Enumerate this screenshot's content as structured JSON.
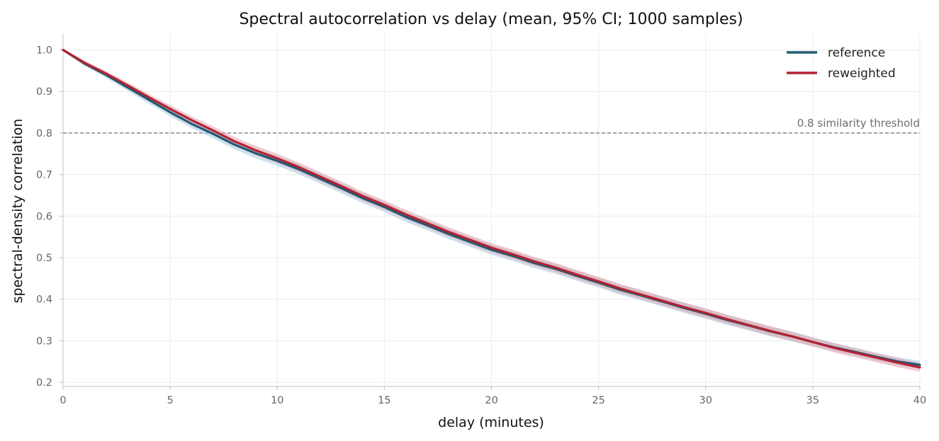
{
  "chart_data": {
    "type": "line",
    "title": "Spectral autocorrelation vs delay (mean, 95% CI; 1000 samples)",
    "xlabel": "delay (minutes)",
    "ylabel": "spectral-density correlation",
    "xlim": [
      0,
      40
    ],
    "ylim": [
      0.19,
      1.04
    ],
    "xticks": [
      0,
      5,
      10,
      15,
      20,
      25,
      30,
      35,
      40
    ],
    "yticks": [
      0.2,
      0.3,
      0.4,
      0.5,
      0.6,
      0.7,
      0.8,
      0.9,
      1.0
    ],
    "ytick_labels": [
      "0.2",
      "0.3",
      "0.4",
      "0.5",
      "0.6",
      "0.7",
      "0.8",
      "0.9",
      "1.0"
    ],
    "grid": true,
    "legend_position": "top-right",
    "threshold": {
      "value": 0.8,
      "label": "0.8 similarity threshold",
      "color": "#888888"
    },
    "x": [
      0,
      1,
      2,
      3,
      4,
      5,
      6,
      7,
      8,
      9,
      10,
      11,
      12,
      13,
      14,
      15,
      16,
      17,
      18,
      19,
      20,
      21,
      22,
      23,
      24,
      25,
      26,
      27,
      28,
      29,
      30,
      31,
      32,
      33,
      34,
      35,
      36,
      37,
      38,
      39,
      40
    ],
    "series": [
      {
        "name": "reference",
        "color": "#1f5b72",
        "band_color": "#a9c6dc",
        "values": [
          1.0,
          0.967,
          0.94,
          0.91,
          0.88,
          0.85,
          0.822,
          0.798,
          0.772,
          0.751,
          0.733,
          0.713,
          0.69,
          0.667,
          0.643,
          0.622,
          0.598,
          0.578,
          0.557,
          0.538,
          0.519,
          0.504,
          0.487,
          0.473,
          0.456,
          0.44,
          0.423,
          0.409,
          0.394,
          0.379,
          0.365,
          0.35,
          0.337,
          0.323,
          0.311,
          0.297,
          0.284,
          0.273,
          0.261,
          0.25,
          0.242
        ],
        "ci_lower": [
          1.0,
          0.962,
          0.933,
          0.902,
          0.871,
          0.84,
          0.812,
          0.787,
          0.761,
          0.739,
          0.721,
          0.701,
          0.678,
          0.655,
          0.631,
          0.61,
          0.586,
          0.566,
          0.545,
          0.526,
          0.507,
          0.492,
          0.475,
          0.461,
          0.444,
          0.428,
          0.411,
          0.397,
          0.382,
          0.367,
          0.353,
          0.338,
          0.325,
          0.311,
          0.299,
          0.287,
          0.275,
          0.264,
          0.252,
          0.241,
          0.233
        ],
        "ci_upper": [
          1.0,
          0.972,
          0.947,
          0.918,
          0.889,
          0.86,
          0.832,
          0.809,
          0.783,
          0.763,
          0.745,
          0.725,
          0.702,
          0.679,
          0.655,
          0.634,
          0.61,
          0.59,
          0.569,
          0.55,
          0.531,
          0.516,
          0.499,
          0.485,
          0.468,
          0.452,
          0.435,
          0.421,
          0.406,
          0.391,
          0.377,
          0.362,
          0.349,
          0.335,
          0.323,
          0.308,
          0.295,
          0.283,
          0.271,
          0.26,
          0.252
        ]
      },
      {
        "name": "reweighted",
        "color": "#b22234",
        "band_color": "#e2a0a9",
        "values": [
          1.0,
          0.969,
          0.943,
          0.915,
          0.886,
          0.858,
          0.831,
          0.806,
          0.78,
          0.758,
          0.739,
          0.718,
          0.695,
          0.672,
          0.648,
          0.627,
          0.604,
          0.583,
          0.562,
          0.543,
          0.524,
          0.508,
          0.491,
          0.476,
          0.459,
          0.443,
          0.426,
          0.411,
          0.396,
          0.381,
          0.367,
          0.352,
          0.338,
          0.324,
          0.311,
          0.297,
          0.283,
          0.271,
          0.259,
          0.247,
          0.236
        ],
        "ci_lower": [
          1.0,
          0.964,
          0.937,
          0.908,
          0.878,
          0.849,
          0.822,
          0.796,
          0.77,
          0.747,
          0.728,
          0.707,
          0.684,
          0.661,
          0.637,
          0.616,
          0.593,
          0.572,
          0.551,
          0.532,
          0.513,
          0.497,
          0.48,
          0.465,
          0.448,
          0.432,
          0.415,
          0.4,
          0.385,
          0.37,
          0.356,
          0.341,
          0.327,
          0.313,
          0.3,
          0.286,
          0.272,
          0.26,
          0.248,
          0.236,
          0.226
        ],
        "ci_upper": [
          1.0,
          0.974,
          0.949,
          0.922,
          0.894,
          0.867,
          0.84,
          0.816,
          0.79,
          0.769,
          0.75,
          0.729,
          0.706,
          0.683,
          0.659,
          0.638,
          0.615,
          0.594,
          0.573,
          0.554,
          0.535,
          0.519,
          0.502,
          0.487,
          0.47,
          0.454,
          0.437,
          0.422,
          0.407,
          0.392,
          0.378,
          0.363,
          0.349,
          0.335,
          0.322,
          0.308,
          0.294,
          0.282,
          0.27,
          0.258,
          0.246
        ]
      }
    ]
  }
}
